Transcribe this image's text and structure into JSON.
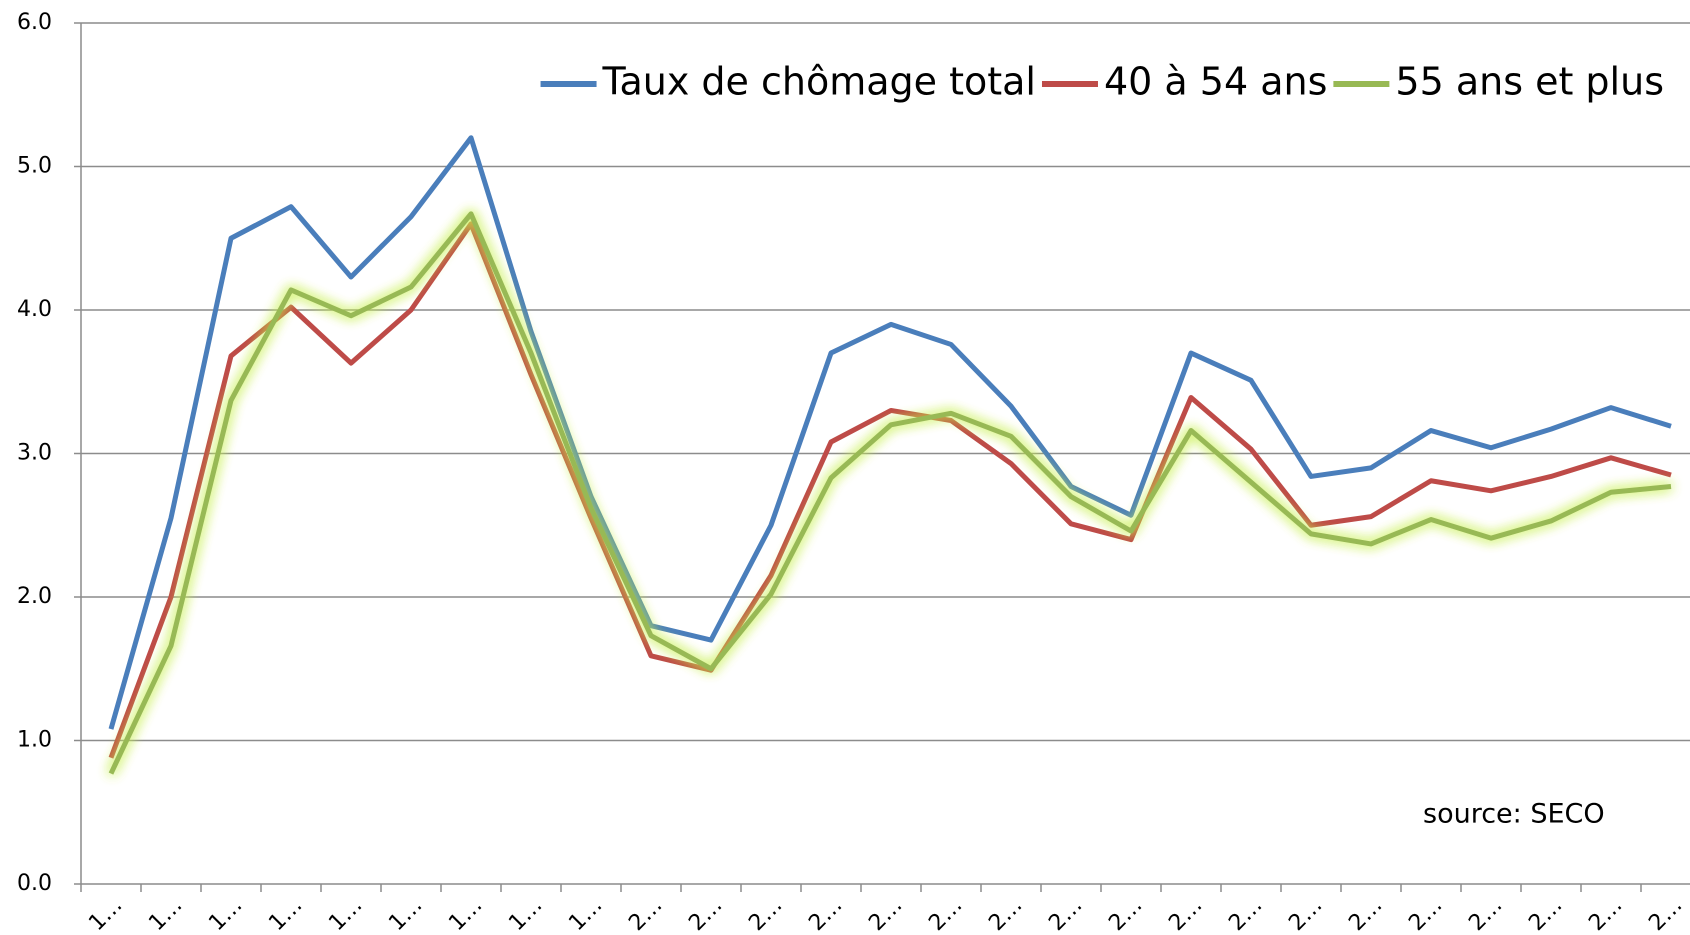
{
  "chart_data": {
    "type": "line",
    "categories": [
      "1…",
      "1…",
      "1…",
      "1…",
      "1…",
      "1…",
      "1…",
      "1…",
      "1…",
      "2…",
      "2…",
      "2…",
      "2…",
      "2…",
      "2…",
      "2…",
      "2…",
      "2…",
      "2…",
      "2…",
      "2…",
      "2…",
      "2…",
      "2…",
      "2…",
      "2…",
      "2…"
    ],
    "series": [
      {
        "name": "Taux de chômage total",
        "color": "#4a7ebb",
        "values": [
          1.08,
          2.55,
          4.5,
          4.72,
          4.23,
          4.65,
          5.2,
          3.85,
          2.7,
          1.8,
          1.7,
          2.5,
          3.7,
          3.9,
          3.76,
          3.33,
          2.77,
          2.57,
          3.7,
          3.51,
          2.84,
          2.9,
          3.16,
          3.04,
          3.17,
          3.32,
          3.19
        ]
      },
      {
        "name": "40 à  54 ans",
        "color": "#be4b48",
        "values": [
          0.88,
          2.0,
          3.68,
          4.02,
          3.63,
          4.0,
          4.6,
          3.55,
          2.55,
          1.59,
          1.49,
          2.15,
          3.08,
          3.3,
          3.23,
          2.93,
          2.51,
          2.4,
          3.39,
          3.03,
          2.5,
          2.56,
          2.81,
          2.74,
          2.84,
          2.97,
          2.85
        ]
      },
      {
        "name": "55 ans et plus",
        "color": "#98b954",
        "glow": true,
        "values": [
          0.77,
          1.66,
          3.37,
          4.14,
          3.96,
          4.16,
          4.67,
          3.7,
          2.62,
          1.73,
          1.5,
          2.02,
          2.83,
          3.2,
          3.28,
          3.12,
          2.7,
          2.46,
          3.16,
          2.8,
          2.44,
          2.37,
          2.54,
          2.41,
          2.53,
          2.73,
          2.77
        ]
      }
    ],
    "ylim": [
      0,
      6
    ],
    "yticks": [
      {
        "value": 0,
        "label": "0.0"
      },
      {
        "value": 1,
        "label": "1.0"
      },
      {
        "value": 2,
        "label": "2.0"
      },
      {
        "value": 3,
        "label": "3.0"
      },
      {
        "value": 4,
        "label": "4.0"
      },
      {
        "value": 5,
        "label": "5.0"
      },
      {
        "value": 6,
        "label": "6.0"
      }
    ],
    "grid": true,
    "legend": "top-right",
    "annotation": "source: SECO"
  }
}
